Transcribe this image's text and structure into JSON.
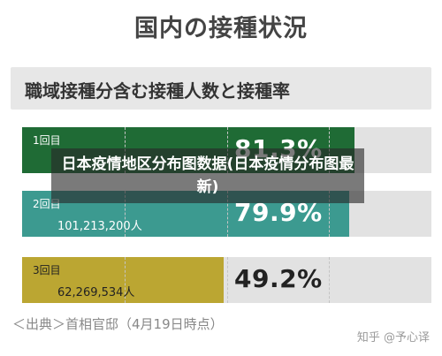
{
  "page": {
    "title": "国内の接種状況",
    "subtitle": "職域接種分含む接種人数と接種率",
    "source": "＜出典＞首相官邸（4月19日時点）",
    "watermark": "知乎 @予心译",
    "overlay_title": "日本疫情地区分布图数据(日本疫情分布图最新)"
  },
  "colors": {
    "dose1": "#1f6b35",
    "dose2": "#3c9a90",
    "dose3": "#bba632",
    "track": "#e2e2e2"
  },
  "chart_data": {
    "type": "bar",
    "orientation": "horizontal",
    "title": "職域接種分含む接種人数と接種率",
    "categories": [
      "1回目",
      "2回目",
      "3回目"
    ],
    "counts_labels": [
      "",
      "101,213,200人",
      "62,269,534人"
    ],
    "percent_labels": [
      "81.3%",
      "79.9%",
      "49.2%"
    ],
    "values": [
      81.3,
      79.9,
      49.2
    ],
    "xlim": [
      0,
      100
    ],
    "grid": true
  }
}
